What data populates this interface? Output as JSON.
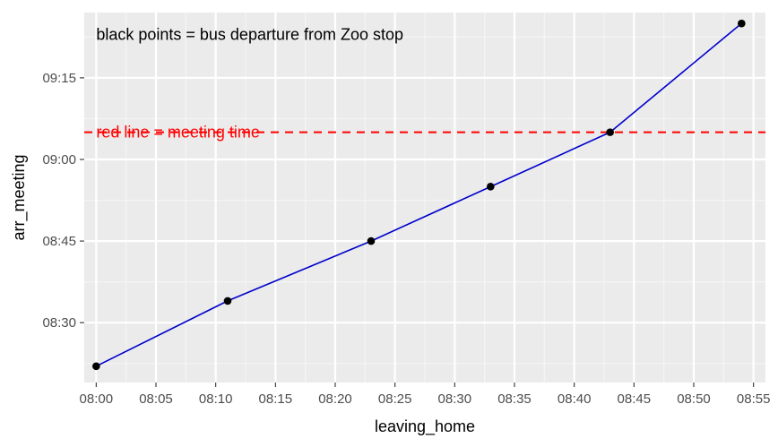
{
  "chart_data": {
    "type": "line",
    "title": "",
    "xlabel": "leaving_home",
    "ylabel": "arr_meeting",
    "x_unit": "time (HH:MM)",
    "y_unit": "time (HH:MM)",
    "xlim": [
      "07:59",
      "08:56"
    ],
    "ylim": [
      "08:19",
      "09:27"
    ],
    "x_ticks": [
      "08:00",
      "08:05",
      "08:10",
      "08:15",
      "08:20",
      "08:25",
      "08:30",
      "08:35",
      "08:40",
      "08:45",
      "08:50",
      "08:55"
    ],
    "y_ticks": [
      "08:30",
      "08:45",
      "09:00",
      "09:15"
    ],
    "grid": true,
    "legend": "none",
    "series": [
      {
        "color": "#0000cc",
        "marker_color": "#000000",
        "points": [
          {
            "x": "08:00",
            "y": "08:22"
          },
          {
            "x": "08:11",
            "y": "08:34"
          },
          {
            "x": "08:23",
            "y": "08:45"
          },
          {
            "x": "08:33",
            "y": "08:55"
          },
          {
            "x": "08:43",
            "y": "09:05"
          },
          {
            "x": "08:54",
            "y": "09:25"
          }
        ]
      }
    ],
    "hline": {
      "y": "09:05",
      "color": "#ff0000",
      "style": "dashed"
    },
    "annotations": [
      {
        "text": "black points = bus departure from Zoo stop",
        "x": "08:00",
        "y": "09:23",
        "color": "#000000"
      },
      {
        "text": "red line = meeting time",
        "x": "08:00",
        "y": "09:05",
        "color": "#ff0000"
      }
    ],
    "colors": {
      "panel": "#ebebeb",
      "grid_major": "#ffffff",
      "grid_minor": "#f5f5f5"
    }
  }
}
